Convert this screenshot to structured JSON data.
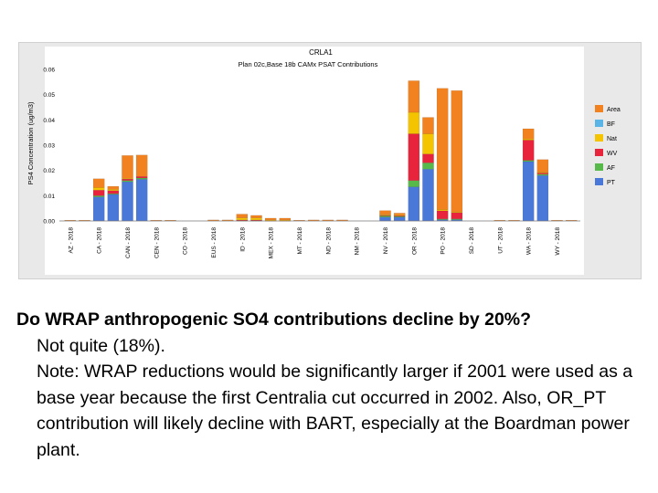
{
  "question": "Do WRAP anthropogenic SO4 contributions decline by 20%?",
  "answer": "Not quite (18%).",
  "note": "Note: WRAP reductions would be significantly larger if 2001 were used as a base year because the first Centralia cut occurred in 2002.  Also, OR_PT contribution will likely decline with BART, especially at the Boardman power plant.",
  "chart_data": {
    "type": "bar",
    "stacked": true,
    "title": "CRLA1",
    "subtitle": "Plan 02c,Base 18b CAMx PSAT Contributions",
    "ylabel": "PS4 Concentration (ug/m3)",
    "xlabel": "",
    "ylim": [
      0,
      0.06
    ],
    "yticks": [
      "0.00",
      "0.01",
      "0.02",
      "0.03",
      "0.04",
      "0.05",
      "0.06"
    ],
    "legend_position": "right",
    "categories": [
      "AZ - 2018",
      "",
      "CA - 2018",
      "",
      "CAN - 2018",
      "",
      "CEN - 2018",
      "",
      "CO - 2018",
      "",
      "EUS - 2018",
      "",
      "ID - 2018",
      "",
      "MEX - 2018",
      "",
      "MT - 2018",
      "",
      "ND - 2018",
      "",
      "NM - 2018",
      "",
      "NV - 2018",
      "",
      "OR - 2018",
      "",
      "PO - 2018",
      "",
      "SD - 2018",
      "",
      "UT - 2018",
      "",
      "WA - 2018",
      "",
      "WY - 2018",
      ""
    ],
    "series": [
      {
        "name": "Area",
        "color": "#f28220",
        "values": [
          0.0003,
          0.0003,
          0.0035,
          0.0012,
          0.009,
          0.0085,
          0.0003,
          0.0003,
          0,
          0,
          0.0004,
          0.0004,
          0.0015,
          0.001,
          0.0007,
          0.0007,
          0.0003,
          0.0004,
          0.0004,
          0.0004,
          0,
          0,
          0.0015,
          0.0007,
          0.0125,
          0.0065,
          0.048,
          0.048,
          0,
          0,
          0.0003,
          0.0003,
          0.004,
          0.005,
          0.0003,
          0.0003
        ]
      },
      {
        "name": "BF",
        "color": "#5ab4e6",
        "values": [
          0,
          0,
          0,
          0,
          0,
          0,
          0,
          0,
          0,
          0,
          0,
          0,
          0,
          0,
          0,
          0,
          0,
          0,
          0,
          0,
          0,
          0,
          0,
          0,
          0,
          0,
          0,
          0,
          0,
          0,
          0,
          0,
          0,
          0,
          0,
          0
        ]
      },
      {
        "name": "Nat",
        "color": "#f5c400",
        "values": [
          0,
          0,
          0.001,
          0.0005,
          0.0003,
          0,
          0,
          0,
          0,
          0,
          0,
          0,
          0.0008,
          0.0008,
          0.0002,
          0.0002,
          0,
          0,
          0,
          0,
          0,
          0,
          0.0003,
          0.0003,
          0.0085,
          0.008,
          0.0005,
          0.0003,
          0,
          0,
          0,
          0,
          0.0005,
          0.0003,
          0,
          0
        ]
      },
      {
        "name": "WV",
        "color": "#e8243c",
        "values": [
          0,
          0,
          0.0022,
          0.0012,
          0.0006,
          0.0006,
          0,
          0,
          0,
          0,
          0,
          0,
          0.0002,
          0.0002,
          0.0002,
          0.0002,
          0,
          0,
          0,
          0,
          0,
          0,
          0.0003,
          0.0003,
          0.0185,
          0.0035,
          0.0032,
          0.0025,
          0,
          0,
          0,
          0,
          0.008,
          0.0005,
          0,
          0
        ]
      },
      {
        "name": "AF",
        "color": "#56b94a",
        "values": [
          0,
          0,
          0.0005,
          0.0003,
          0.0005,
          0.0005,
          0,
          0,
          0,
          0,
          0,
          0,
          0.0002,
          0.0002,
          0,
          0,
          0,
          0,
          0,
          0,
          0,
          0,
          0.0005,
          0.0003,
          0.0025,
          0.0025,
          0.0003,
          0.0003,
          0,
          0,
          0,
          0,
          0.0005,
          0.0005,
          0,
          0
        ]
      },
      {
        "name": "PT",
        "color": "#4a78d8",
        "values": [
          0,
          0,
          0.0095,
          0.0105,
          0.0155,
          0.0165,
          0,
          0,
          0,
          0,
          0,
          0,
          0,
          0,
          0,
          0,
          0,
          0,
          0,
          0,
          0,
          0,
          0.0015,
          0.0015,
          0.0135,
          0.0205,
          0.0005,
          0.0005,
          0,
          0,
          0,
          0,
          0.0235,
          0.018,
          0,
          0
        ]
      }
    ]
  }
}
